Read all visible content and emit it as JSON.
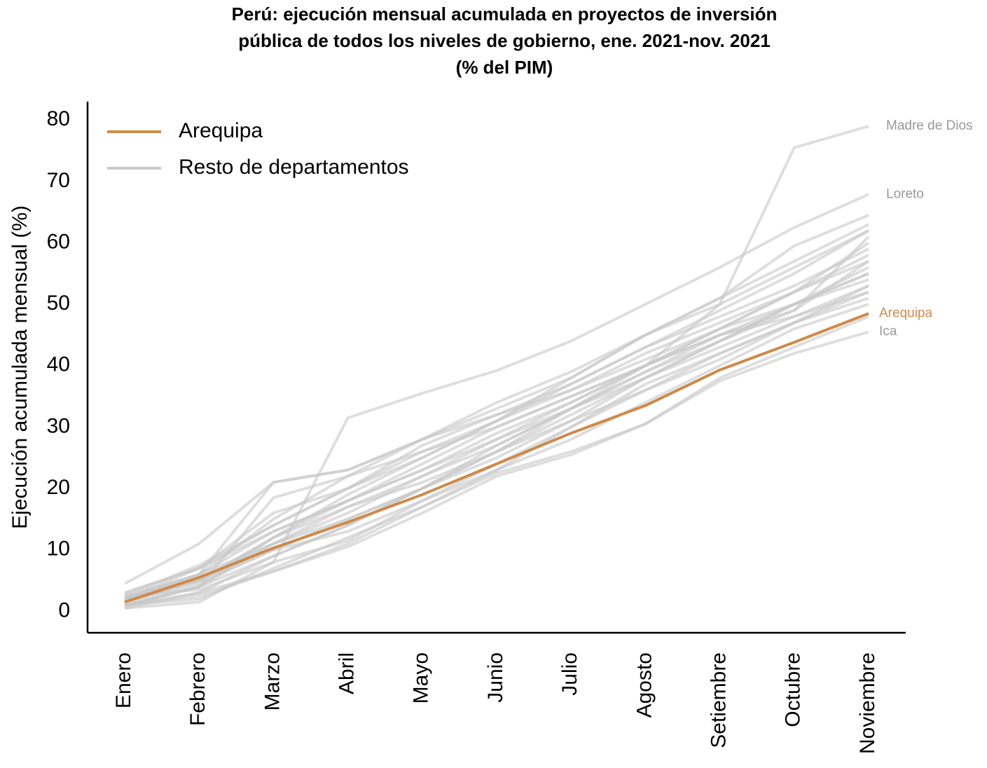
{
  "chart_data": {
    "type": "line",
    "title": [
      "Perú: ejecución mensual acumulada en proyectos de inversión",
      "pública de todos los niveles de gobierno, ene. 2021-nov. 2021",
      "(% del PIM)"
    ],
    "y_label": "Ejecución acumulada mensual (%)",
    "categories": [
      "Enero",
      "Febrero",
      "Marzo",
      "Abril",
      "Mayo",
      "Junio",
      "Julio",
      "Agosto",
      "Setiembre",
      "Octubre",
      "Noviembre"
    ],
    "ylim": [
      -3.5,
      83
    ],
    "yticks": [
      0,
      10,
      20,
      30,
      40,
      50,
      60,
      70,
      80
    ],
    "legend": [
      {
        "label": "Arequipa",
        "color": "#cd8a4b"
      },
      {
        "label": "Resto de departamentos",
        "color": "#c8c8c8"
      }
    ],
    "series": [
      {
        "name": "Arequipa",
        "color": "#cd8a4b",
        "values": [
          1.5,
          5.5,
          10.3,
          14.5,
          19,
          24,
          29,
          33.5,
          39.3,
          43.8,
          48.5
        ]
      },
      {
        "name": "Madre de Dios",
        "color": "#c8c8c8",
        "values": [
          2,
          5,
          10,
          15,
          20,
          26,
          33,
          40,
          50,
          75.5,
          79
        ]
      },
      {
        "name": "Loreto",
        "color": "#c8c8c8",
        "values": [
          2.5,
          3.5,
          8,
          31.5,
          35.5,
          39.2,
          44,
          50,
          56,
          62.5,
          67.9
        ]
      },
      {
        "name": "Ica",
        "color": "#c8c8c8",
        "values": [
          1,
          2.5,
          6.5,
          11,
          17,
          22.5,
          26,
          30.5,
          37.5,
          42,
          45.5
        ]
      },
      {
        "color": "#c8c8c8",
        "values": [
          4.5,
          11,
          21,
          23,
          28,
          33,
          38,
          45,
          51,
          57,
          63
        ]
      },
      {
        "color": "#c8c8c8",
        "values": [
          0.5,
          1.5,
          8,
          11.5,
          18,
          23,
          30,
          37,
          42,
          47,
          52
        ]
      },
      {
        "color": "#c8c8c8",
        "values": [
          2,
          6,
          21,
          23,
          28,
          32,
          36,
          42,
          47,
          52,
          57
        ]
      },
      {
        "color": "#c8c8c8",
        "values": [
          1,
          4,
          18.5,
          22,
          26,
          30,
          35,
          40,
          46,
          50,
          55
        ]
      },
      {
        "color": "#c8c8c8",
        "values": [
          2,
          7,
          13,
          18,
          23,
          28,
          34,
          40,
          46,
          52,
          58
        ]
      },
      {
        "color": "#c8c8c8",
        "values": [
          1.5,
          5,
          12,
          17,
          22,
          28,
          33,
          39,
          45,
          50,
          55
        ]
      },
      {
        "color": "#c8c8c8",
        "values": [
          3,
          7,
          14,
          20,
          26,
          31,
          37,
          43,
          49,
          55,
          62
        ]
      },
      {
        "color": "#c8c8c8",
        "values": [
          1,
          3,
          9,
          14,
          20,
          26,
          32,
          38,
          44,
          50,
          54
        ]
      },
      {
        "color": "#c8c8c8",
        "values": [
          2.5,
          6,
          11,
          16,
          22,
          27,
          33,
          38,
          43,
          48,
          53
        ]
      },
      {
        "color": "#c8c8c8",
        "values": [
          1,
          4,
          11,
          17,
          21,
          26,
          31,
          36,
          42,
          47,
          51
        ]
      },
      {
        "color": "#c8c8c8",
        "values": [
          2,
          6,
          15,
          22,
          28,
          34,
          39,
          45,
          50,
          56,
          62
        ]
      },
      {
        "color": "#c8c8c8",
        "values": [
          1.5,
          4.5,
          10,
          13,
          18,
          24,
          30,
          36,
          41,
          47,
          53
        ]
      },
      {
        "color": "#c8c8c8",
        "values": [
          3,
          7,
          16,
          20,
          25,
          31,
          38,
          45,
          51,
          59.5,
          64.5
        ]
      },
      {
        "color": "#c8c8c8",
        "values": [
          0.8,
          4,
          12,
          19,
          25,
          31,
          36,
          41,
          46,
          52,
          60
        ]
      },
      {
        "color": "#c8c8c8",
        "values": [
          2,
          5,
          12,
          18,
          24,
          30,
          35,
          40,
          45,
          48,
          52
        ]
      },
      {
        "color": "#c8c8c8",
        "values": [
          1,
          2,
          7,
          12,
          17,
          23,
          28,
          34,
          40,
          46,
          50
        ]
      },
      {
        "color": "#c8c8c8",
        "values": [
          2.5,
          7.5,
          14,
          20,
          27,
          32,
          37,
          43,
          48,
          53,
          59
        ]
      },
      {
        "color": "#c8c8c8",
        "values": [
          1.5,
          5,
          11,
          15,
          20,
          25,
          31,
          38,
          44,
          50,
          56
        ]
      },
      {
        "color": "#c8c8c8",
        "values": [
          2,
          6,
          13,
          18,
          23,
          29,
          34,
          40,
          45,
          49,
          57
        ]
      },
      {
        "color": "#c8c8c8",
        "values": [
          1,
          4,
          9,
          14,
          20,
          27,
          33,
          39,
          44,
          49,
          61
        ]
      },
      {
        "color": "#c8c8c8",
        "values": [
          0.5,
          3,
          6.5,
          10.5,
          16,
          22,
          25.5,
          30.5,
          38,
          43,
          48
        ]
      }
    ]
  }
}
